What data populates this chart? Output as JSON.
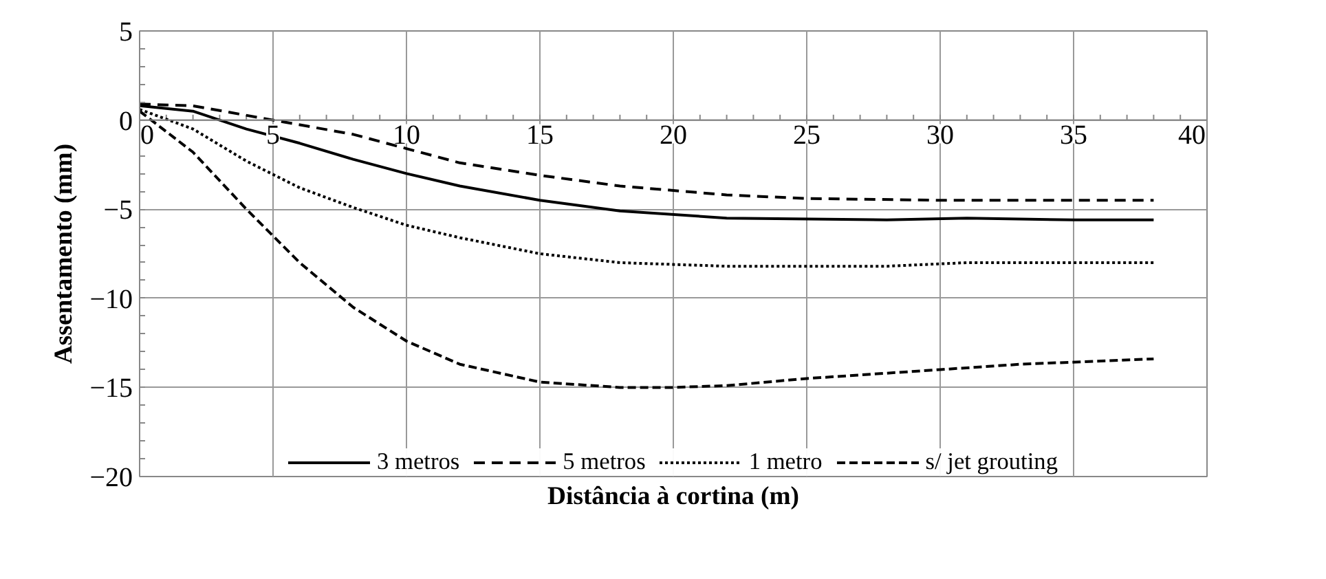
{
  "chart_data": {
    "type": "line",
    "xlabel": "Distância à cortina (m)",
    "ylabel": "Assentamento (mm)",
    "xlim": [
      0,
      40
    ],
    "xticks": [
      0,
      5,
      10,
      15,
      20,
      25,
      30,
      35,
      40
    ],
    "ylim": [
      -20,
      5
    ],
    "yticks": [
      -20,
      -15,
      -10,
      -5,
      0,
      5
    ],
    "grid": true,
    "legend": "bottom",
    "marker": "none",
    "series": [
      {
        "name": "3 metros",
        "color": "#000000",
        "line_style": "solid",
        "x": [
          0,
          2,
          4,
          6,
          8,
          10,
          12,
          15,
          18,
          22,
          28,
          31,
          35,
          38
        ],
        "values": [
          0.8,
          0.5,
          -0.5,
          -1.3,
          -2.2,
          -3.0,
          -3.7,
          -4.5,
          -5.1,
          -5.5,
          -5.6,
          -5.5,
          -5.6,
          -5.6
        ]
      },
      {
        "name": "5 metros",
        "color": "#000000",
        "line_style": "dashed",
        "x": [
          0,
          2,
          5,
          8,
          10,
          12,
          15,
          18,
          22,
          25,
          30,
          38
        ],
        "values": [
          0.9,
          0.8,
          0.0,
          -0.8,
          -1.6,
          -2.4,
          -3.1,
          -3.7,
          -4.2,
          -4.4,
          -4.5,
          -4.5
        ]
      },
      {
        "name": "1 metro",
        "color": "#000000",
        "line_style": "dotted",
        "x": [
          0,
          2,
          4,
          6,
          8,
          10,
          12,
          15,
          18,
          22,
          28,
          31,
          38
        ],
        "values": [
          0.6,
          -0.5,
          -2.3,
          -3.8,
          -4.9,
          -5.9,
          -6.6,
          -7.5,
          -8.0,
          -8.2,
          -8.2,
          -8.0,
          -8.0
        ]
      },
      {
        "name": "s/ jet grouting",
        "color": "#000000",
        "line_style": "dashed",
        "x": [
          0,
          2,
          4,
          6,
          8,
          10,
          12,
          15,
          18,
          20,
          22,
          25,
          30,
          33,
          38
        ],
        "values": [
          0.5,
          -1.8,
          -5.0,
          -8.0,
          -10.5,
          -12.4,
          -13.7,
          -14.7,
          -15.0,
          -15.0,
          -14.9,
          -14.5,
          -14.0,
          -13.7,
          -13.4
        ]
      }
    ]
  }
}
